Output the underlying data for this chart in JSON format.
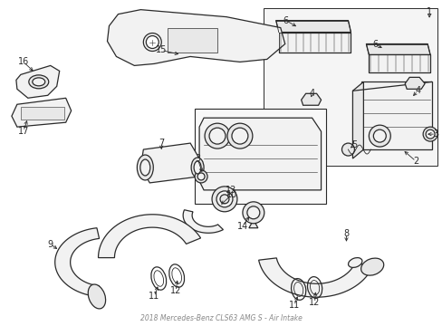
{
  "title": "2018 Mercedes-Benz CLS63 AMG S Air Intake Diagram",
  "bg_color": "#ffffff",
  "line_color": "#2a2a2a",
  "label_color": "#2a2a2a",
  "fig_width": 4.89,
  "fig_height": 3.6,
  "dpi": 100
}
